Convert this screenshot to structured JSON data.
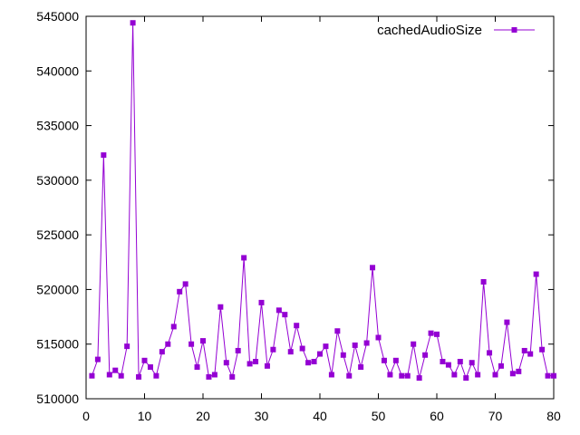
{
  "chart_data": {
    "type": "line",
    "xlim": [
      0,
      80
    ],
    "ylim": [
      510000,
      545000
    ],
    "x_ticks": [
      0,
      10,
      20,
      30,
      40,
      50,
      60,
      70,
      80
    ],
    "y_ticks": [
      510000,
      515000,
      520000,
      525000,
      530000,
      535000,
      540000,
      545000
    ],
    "grid": false,
    "legend_position": "top-right",
    "color": "#9400d3",
    "marker": "filled-square",
    "series": [
      {
        "name": "cachedAudioSize",
        "x": [
          1,
          2,
          3,
          4,
          5,
          6,
          7,
          8,
          9,
          10,
          11,
          12,
          13,
          14,
          15,
          16,
          17,
          18,
          19,
          20,
          21,
          22,
          23,
          24,
          25,
          26,
          27,
          28,
          29,
          30,
          31,
          32,
          33,
          34,
          35,
          36,
          37,
          38,
          39,
          40,
          41,
          42,
          43,
          44,
          45,
          46,
          47,
          48,
          49,
          50,
          51,
          52,
          53,
          54,
          55,
          56,
          57,
          58,
          59,
          60,
          61,
          62,
          63,
          64,
          65,
          66,
          67,
          68,
          69,
          70,
          71,
          72,
          73,
          74,
          75,
          76,
          77,
          78,
          79,
          80
        ],
        "values": [
          512100,
          513600,
          532300,
          512200,
          512600,
          512100,
          514800,
          544400,
          512000,
          513500,
          512900,
          512100,
          514300,
          515000,
          516600,
          519800,
          520500,
          515000,
          512900,
          515300,
          512000,
          512200,
          518400,
          513300,
          512000,
          514400,
          522900,
          513200,
          513400,
          518800,
          513000,
          514500,
          518100,
          517700,
          514300,
          516700,
          514600,
          513300,
          513400,
          514100,
          514800,
          512200,
          516200,
          514000,
          512100,
          514900,
          512900,
          515100,
          522000,
          515600,
          513500,
          512200,
          513500,
          512100,
          512100,
          515000,
          511900,
          514000,
          516000,
          515900,
          513400,
          513100,
          512200,
          513400,
          511900,
          513300,
          512200,
          520700,
          514200,
          512200,
          513000,
          517000,
          512300,
          512500,
          514400,
          514100,
          521400,
          514500,
          512100,
          512100
        ]
      }
    ]
  },
  "legend": {
    "label": "cachedAudioSize"
  }
}
